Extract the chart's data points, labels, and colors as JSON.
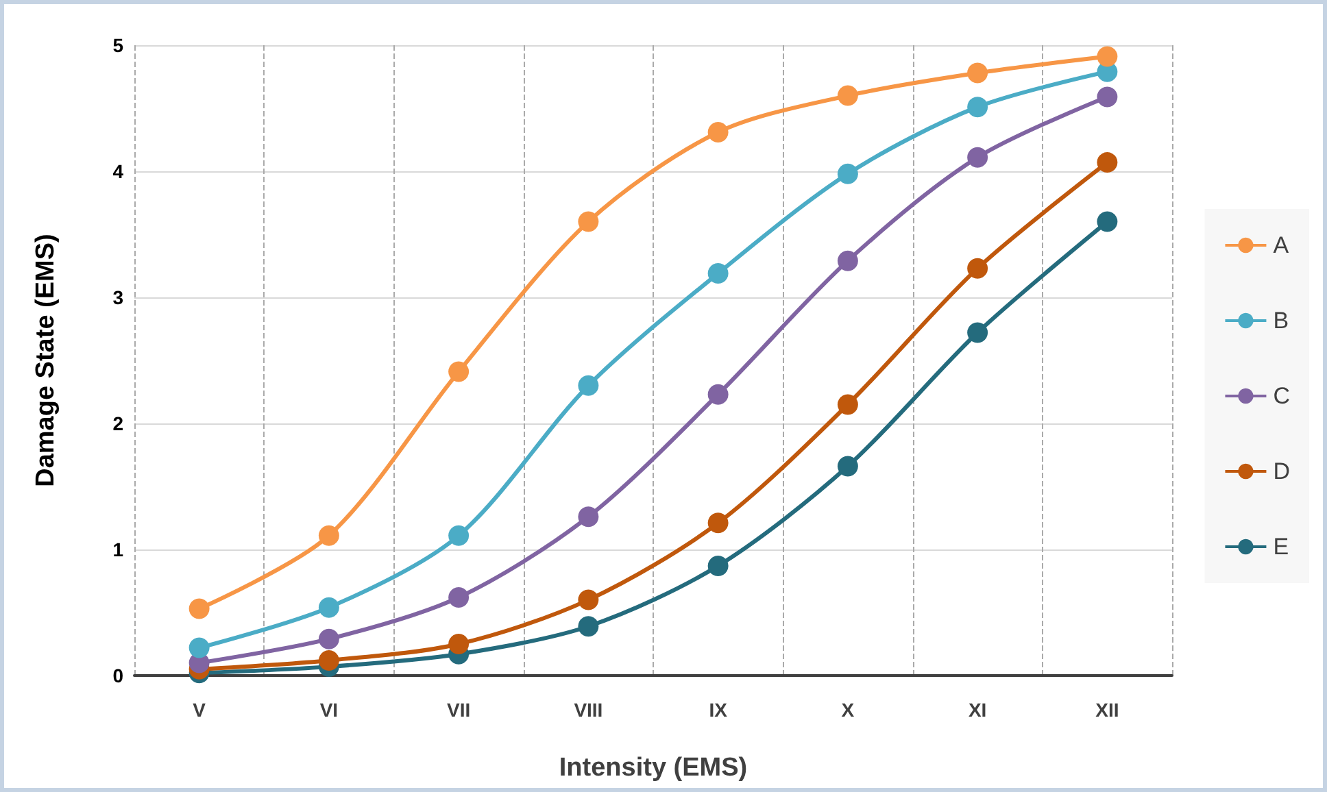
{
  "chart_data": {
    "type": "line",
    "xlabel": "Intensity (EMS)",
    "ylabel": "Damage State (EMS)",
    "categories": [
      "V",
      "VI",
      "VII",
      "VIII",
      "IX",
      "X",
      "XI",
      "XII"
    ],
    "series": [
      {
        "name": "A",
        "color": "#f79646",
        "values": [
          0.53,
          1.11,
          2.41,
          3.6,
          4.31,
          4.6,
          4.78,
          4.91
        ]
      },
      {
        "name": "B",
        "color": "#4bacc6",
        "values": [
          0.22,
          0.54,
          1.11,
          2.3,
          3.19,
          3.98,
          4.51,
          4.79
        ]
      },
      {
        "name": "C",
        "color": "#8064a2",
        "values": [
          0.1,
          0.29,
          0.62,
          1.26,
          2.23,
          3.29,
          4.11,
          4.59
        ]
      },
      {
        "name": "D",
        "color": "#c0580c",
        "values": [
          0.05,
          0.12,
          0.25,
          0.6,
          1.21,
          2.15,
          3.23,
          4.07
        ]
      },
      {
        "name": "E",
        "color": "#246b7d",
        "values": [
          0.02,
          0.07,
          0.17,
          0.39,
          0.87,
          1.66,
          2.72,
          3.6
        ]
      }
    ],
    "ylim": [
      0,
      5
    ],
    "yticks": [
      0,
      1,
      2,
      3,
      4,
      5
    ],
    "grid": true,
    "legend": "right",
    "marker": "circle",
    "line_style": "solid"
  }
}
